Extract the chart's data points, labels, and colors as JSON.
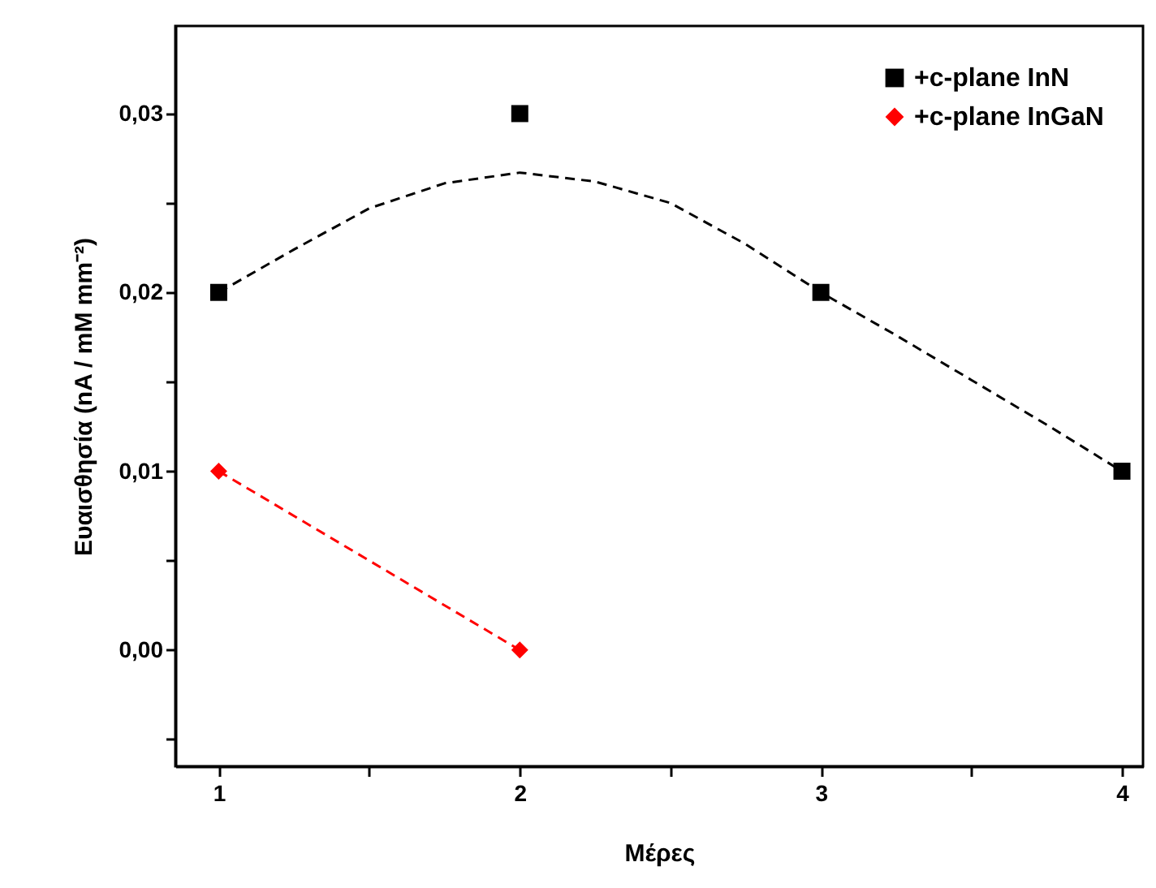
{
  "chart_data": {
    "type": "scatter",
    "xlabel": "Μέρες",
    "ylabel": "Ευαισθησία (nA / mM mm⁻²)",
    "xlim": [
      0.856,
      4.07
    ],
    "ylim": [
      -0.0065,
      0.0349
    ],
    "xticks": [
      1,
      {
        "value": 1.5,
        "label": null
      },
      2,
      {
        "value": 2.5,
        "label": null
      },
      3,
      {
        "value": 3.5,
        "label": null
      },
      4
    ],
    "yticks": [
      {
        "value": -0.005,
        "label": null
      },
      {
        "value": 0,
        "label": "0,00"
      },
      {
        "value": 0.005,
        "label": null
      },
      {
        "value": 0.01,
        "label": "0,01"
      },
      {
        "value": 0.015,
        "label": null
      },
      {
        "value": 0.02,
        "label": "0,02"
      },
      {
        "value": 0.025,
        "label": null
      },
      {
        "value": 0.03,
        "label": "0,03"
      }
    ],
    "grid": false,
    "legend": "top right",
    "series": [
      {
        "name": "+c-plane InN",
        "marker": "square",
        "color": "#000000",
        "x": [
          1,
          2,
          3,
          4
        ],
        "values": [
          0.02,
          0.03,
          0.02,
          0.01
        ]
      },
      {
        "name": "+c-plane InGaN",
        "type": "line",
        "marker": "diamond",
        "line_style": "dashed",
        "color": "#ff0000",
        "x": [
          1,
          2
        ],
        "values": [
          0.01,
          0.0
        ]
      },
      {
        "type": "line",
        "marker": "none",
        "line_style": "dashed",
        "color": "#000000",
        "x": [
          1,
          1.25,
          1.5,
          1.75,
          2,
          2.25,
          2.5,
          2.75,
          3,
          3.25,
          3.5,
          3.75,
          4
        ],
        "values": [
          0.02,
          0.0224,
          0.0247,
          0.0261,
          0.0267,
          0.0262,
          0.025,
          0.0227,
          0.02,
          0.0176,
          0.0151,
          0.0126,
          0.01
        ]
      }
    ]
  }
}
